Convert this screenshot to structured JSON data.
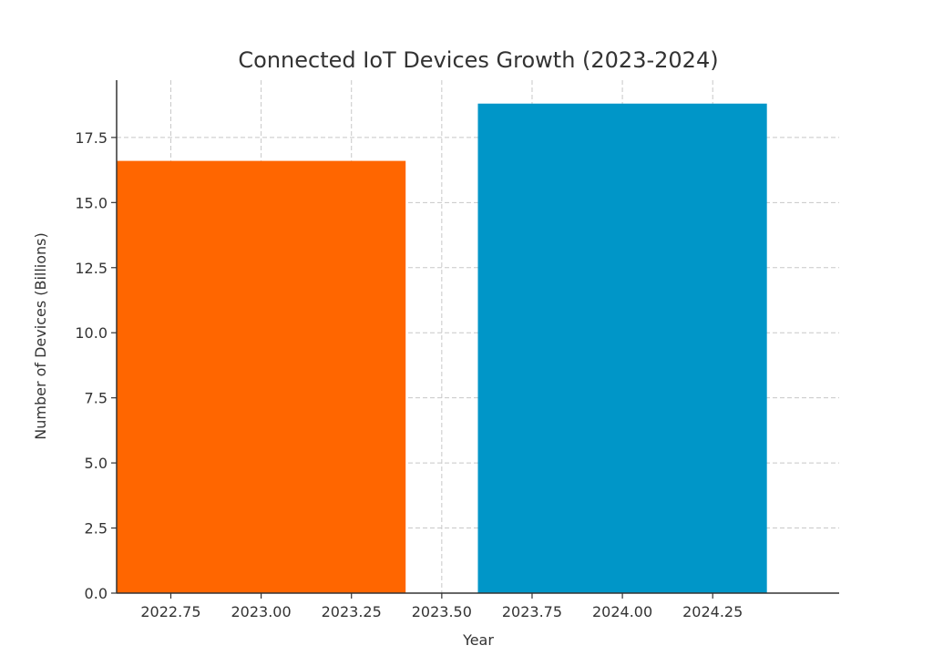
{
  "chart_data": {
    "type": "bar",
    "title": "Connected IoT Devices Growth (2023-2024)",
    "xlabel": "Year",
    "ylabel": "Number of Devices (Billions)",
    "xlim": [
      2022.6,
      2024.6
    ],
    "ylim": [
      0,
      19.7
    ],
    "bar_width": 0.8,
    "bars": [
      {
        "x": 2023,
        "value": 16.6,
        "color": "#ff6600"
      },
      {
        "x": 2024,
        "value": 18.8,
        "color": "#0096c8"
      }
    ],
    "x_ticks": [
      2022.75,
      2023.0,
      2023.25,
      2023.5,
      2023.75,
      2024.0,
      2024.25
    ],
    "x_tick_labels": [
      "2022.75",
      "2023.00",
      "2023.25",
      "2023.50",
      "2023.75",
      "2024.00",
      "2024.25"
    ],
    "y_ticks": [
      0,
      2.5,
      5.0,
      7.5,
      10.0,
      12.5,
      15.0,
      17.5
    ],
    "y_tick_labels": [
      "0.0",
      "2.5",
      "5.0",
      "7.5",
      "10.0",
      "12.5",
      "15.0",
      "17.5"
    ],
    "grid": true
  }
}
